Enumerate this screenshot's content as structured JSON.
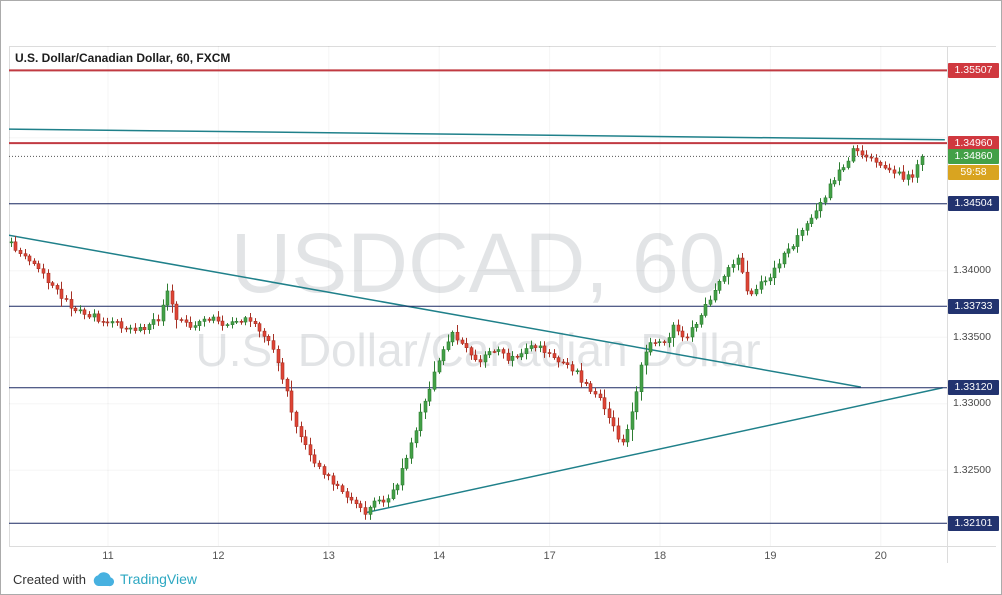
{
  "header": {
    "title": "U.S. Dollar/Canadian Dollar, 60, FXCM"
  },
  "watermark": {
    "line1": "USDCAD, 60",
    "line2": "U.S. Dollar/Canadian Dollar"
  },
  "attribution": {
    "prefix": "Created with",
    "brand": "TradingView"
  },
  "price_axis": {
    "plain_labels": [
      {
        "text": "1.34000",
        "price": 1.34
      },
      {
        "text": "1.33500",
        "price": 1.335
      },
      {
        "text": "1.33000",
        "price": 1.33
      },
      {
        "text": "1.32500",
        "price": 1.325
      }
    ]
  },
  "time_axis": {
    "labels": [
      {
        "text": "11",
        "t": 1
      },
      {
        "text": "12",
        "t": 2
      },
      {
        "text": "13",
        "t": 3
      },
      {
        "text": "14",
        "t": 4
      },
      {
        "text": "17",
        "t": 5
      },
      {
        "text": "18",
        "t": 6
      },
      {
        "text": "19",
        "t": 7
      },
      {
        "text": "20",
        "t": 8
      }
    ]
  },
  "chart_data": {
    "type": "candlestick",
    "symbol": "USDCAD",
    "name": "U.S. Dollar/Canadian Dollar",
    "interval": "60",
    "exchange": "FXCM",
    "last_price": 1.3486,
    "last_price_label": "1.34860",
    "bar_countdown": "59:58",
    "y_domain": [
      1.3193,
      1.3569
    ],
    "bars_per_day": 24,
    "t_range": [
      0.12,
      8.4
    ],
    "grid_prices": [
      1.355,
      1.35,
      1.345,
      1.34,
      1.335,
      1.33,
      1.325
    ],
    "levels": [
      {
        "label": "1.35507",
        "price": 1.35507,
        "style": "red"
      },
      {
        "label": "1.34960",
        "price": 1.3496,
        "style": "red"
      },
      {
        "label": "1.34504",
        "price": 1.34504,
        "style": "navy"
      },
      {
        "label": "1.33733",
        "price": 1.33733,
        "style": "navy"
      },
      {
        "label": "1.33120",
        "price": 1.3312,
        "style": "navy"
      },
      {
        "label": "1.32101",
        "price": 1.32101,
        "style": "navy"
      }
    ],
    "trendlines": [
      {
        "name": "upper-resistance-trendline",
        "p1": [
          0.08,
          1.35065
        ],
        "p2": [
          8.58,
          1.34985
        ]
      },
      {
        "name": "descending-trendline",
        "p1": [
          0.08,
          1.3427
        ],
        "p2": [
          7.82,
          1.33125
        ]
      },
      {
        "name": "ascending-trendline",
        "p1": [
          3.33,
          1.3218
        ],
        "p2": [
          8.56,
          1.3312
        ]
      }
    ],
    "price_path": [
      [
        0.12,
        1.3421
      ],
      [
        0.28,
        1.3414
      ],
      [
        0.4,
        1.34
      ],
      [
        0.54,
        1.3389
      ],
      [
        0.7,
        1.3374
      ],
      [
        0.86,
        1.3366
      ],
      [
        1.02,
        1.3363
      ],
      [
        1.2,
        1.3356
      ],
      [
        1.36,
        1.3357
      ],
      [
        1.5,
        1.3363
      ],
      [
        1.58,
        1.3384
      ],
      [
        1.66,
        1.3366
      ],
      [
        1.8,
        1.3358
      ],
      [
        1.96,
        1.3364
      ],
      [
        2.12,
        1.336
      ],
      [
        2.3,
        1.3363
      ],
      [
        2.44,
        1.3353
      ],
      [
        2.54,
        1.3343
      ],
      [
        2.62,
        1.3321
      ],
      [
        2.72,
        1.3289
      ],
      [
        2.82,
        1.3268
      ],
      [
        2.94,
        1.3254
      ],
      [
        3.06,
        1.3242
      ],
      [
        3.18,
        1.3233
      ],
      [
        3.3,
        1.3223
      ],
      [
        3.38,
        1.3218
      ],
      [
        3.48,
        1.3231
      ],
      [
        3.58,
        1.3226
      ],
      [
        3.68,
        1.3243
      ],
      [
        3.78,
        1.3269
      ],
      [
        3.88,
        1.3296
      ],
      [
        3.98,
        1.3318
      ],
      [
        4.08,
        1.3341
      ],
      [
        4.16,
        1.3352
      ],
      [
        4.28,
        1.334
      ],
      [
        4.4,
        1.3333
      ],
      [
        4.54,
        1.3341
      ],
      [
        4.66,
        1.3335
      ],
      [
        4.78,
        1.3339
      ],
      [
        4.92,
        1.3343
      ],
      [
        5.06,
        1.3337
      ],
      [
        5.18,
        1.3331
      ],
      [
        5.3,
        1.3321
      ],
      [
        5.42,
        1.3311
      ],
      [
        5.52,
        1.3301
      ],
      [
        5.62,
        1.3283
      ],
      [
        5.68,
        1.3267
      ],
      [
        5.74,
        1.3281
      ],
      [
        5.8,
        1.3301
      ],
      [
        5.88,
        1.3331
      ],
      [
        5.96,
        1.3348
      ],
      [
        6.06,
        1.3343
      ],
      [
        6.16,
        1.3357
      ],
      [
        6.26,
        1.3349
      ],
      [
        6.36,
        1.3361
      ],
      [
        6.46,
        1.3373
      ],
      [
        6.56,
        1.3391
      ],
      [
        6.66,
        1.3403
      ],
      [
        6.76,
        1.3411
      ],
      [
        6.84,
        1.338
      ],
      [
        6.94,
        1.3391
      ],
      [
        7.06,
        1.3399
      ],
      [
        7.18,
        1.3413
      ],
      [
        7.32,
        1.343
      ],
      [
        7.46,
        1.3447
      ],
      [
        7.58,
        1.3463
      ],
      [
        7.7,
        1.3479
      ],
      [
        7.8,
        1.3492
      ],
      [
        7.88,
        1.3485
      ],
      [
        7.98,
        1.3482
      ],
      [
        8.08,
        1.3479
      ],
      [
        8.18,
        1.3474
      ],
      [
        8.26,
        1.3468
      ],
      [
        8.33,
        1.3473
      ],
      [
        8.4,
        1.3486
      ]
    ]
  },
  "colors": {
    "candle_up": "#43a047",
    "candle_up_border": "#2e7d32",
    "candle_down": "#df4435",
    "candle_down_border": "#a63125",
    "red_line": "#c13a42",
    "navy_line": "#1b2a63",
    "teal_line": "#1f808a",
    "badge_red": "#d0383f",
    "badge_navy": "#22336f",
    "badge_green": "#43a047",
    "badge_amber": "#d9a420",
    "current_price_line": "#555555",
    "brand_teal": "#2da8c2",
    "logo_blue": "#47b1e0"
  }
}
